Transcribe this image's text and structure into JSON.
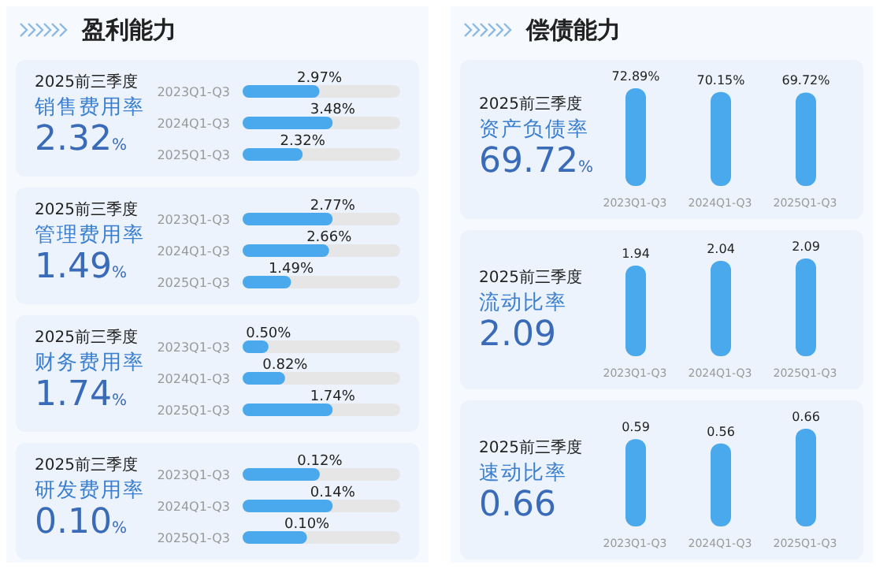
{
  "chart_data": [
    {
      "type": "other",
      "title": "盈利能力"
    },
    {
      "type": "bar",
      "orientation": "horizontal",
      "subtitle": "2025前三季度",
      "title": "销售费用率",
      "annotations": [
        "2.32%"
      ],
      "categories": [
        "2023Q1-Q3",
        "2024Q1-Q3",
        "2025Q1-Q3"
      ],
      "values": [
        2.97,
        3.48,
        2.32
      ],
      "value_labels": [
        "2.97%",
        "3.48%",
        "2.32%"
      ],
      "color": "#4aa8ec"
    },
    {
      "type": "bar",
      "orientation": "horizontal",
      "subtitle": "2025前三季度",
      "title": "管理费用率",
      "annotations": [
        "1.49%"
      ],
      "categories": [
        "2023Q1-Q3",
        "2024Q1-Q3",
        "2025Q1-Q3"
      ],
      "values": [
        2.77,
        2.66,
        1.49
      ],
      "value_labels": [
        "2.77%",
        "2.66%",
        "1.49%"
      ],
      "color": "#4aa8ec"
    },
    {
      "type": "bar",
      "orientation": "horizontal",
      "subtitle": "2025前三季度",
      "title": "财务费用率",
      "annotations": [
        "1.74%"
      ],
      "categories": [
        "2023Q1-Q3",
        "2024Q1-Q3",
        "2025Q1-Q3"
      ],
      "values": [
        0.5,
        0.82,
        1.74
      ],
      "value_labels": [
        "0.50%",
        "0.82%",
        "1.74%"
      ],
      "color": "#4aa8ec"
    },
    {
      "type": "bar",
      "orientation": "horizontal",
      "subtitle": "2025前三季度",
      "title": "研发费用率",
      "annotations": [
        "0.10%"
      ],
      "categories": [
        "2023Q1-Q3",
        "2024Q1-Q3",
        "2025Q1-Q3"
      ],
      "values": [
        0.12,
        0.14,
        0.1
      ],
      "value_labels": [
        "0.12%",
        "0.14%",
        "0.10%"
      ],
      "color": "#4aa8ec"
    },
    {
      "type": "other",
      "title": "偿债能力"
    },
    {
      "type": "bar",
      "subtitle": "2025前三季度",
      "title": "资产负债率",
      "annotations": [
        "69.72%"
      ],
      "categories": [
        "2023Q1-Q3",
        "2024Q1-Q3",
        "2025Q1-Q3"
      ],
      "values": [
        72.89,
        70.15,
        69.72
      ],
      "value_labels": [
        "72.89%",
        "70.15%",
        "69.72%"
      ],
      "color": "#4aa8ec"
    },
    {
      "type": "bar",
      "subtitle": "2025前三季度",
      "title": "流动比率",
      "annotations": [
        "2.09"
      ],
      "categories": [
        "2023Q1-Q3",
        "2024Q1-Q3",
        "2025Q1-Q3"
      ],
      "values": [
        1.94,
        2.04,
        2.09
      ],
      "data_labels": true,
      "color": "#4aa8ec"
    },
    {
      "type": "bar",
      "subtitle": "2025前三季度",
      "title": "速动比率",
      "annotations": [
        "0.66"
      ],
      "categories": [
        "2023Q1-Q3",
        "2024Q1-Q3",
        "2025Q1-Q3"
      ],
      "values": [
        0.59,
        0.56,
        0.66
      ],
      "data_labels": true,
      "color": "#4aa8ec"
    }
  ]
}
